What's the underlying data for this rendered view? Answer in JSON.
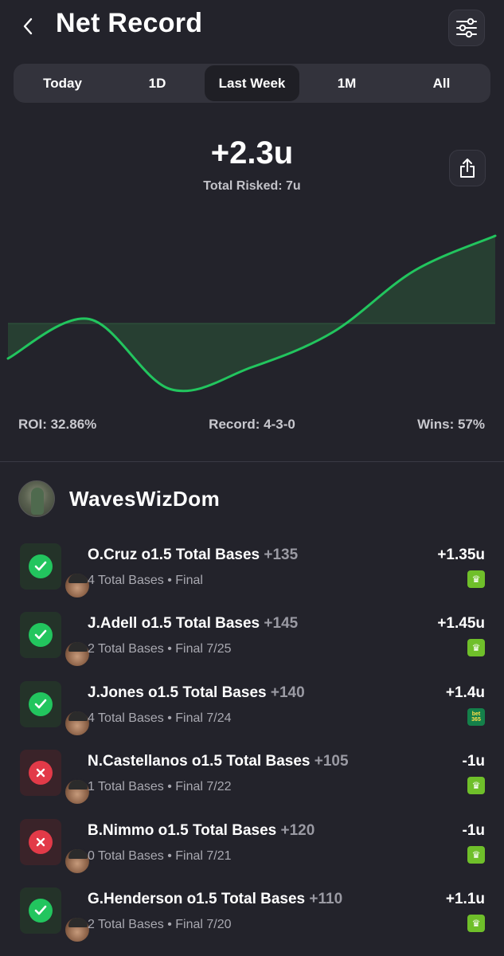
{
  "header": {
    "title": "Net Record",
    "back_icon": "chevron-left-icon",
    "filter_icon": "sliders-icon"
  },
  "tabs": [
    {
      "label": "Today",
      "active": false
    },
    {
      "label": "1D",
      "active": false
    },
    {
      "label": "Last Week",
      "active": true
    },
    {
      "label": "1M",
      "active": false
    },
    {
      "label": "All",
      "active": false
    }
  ],
  "summary": {
    "value": "+2.3u",
    "subtitle": "Total Risked: 7u",
    "share_icon": "share-icon"
  },
  "chart_data": {
    "type": "area",
    "title": "",
    "xlabel": "",
    "ylabel": "",
    "baseline": 0,
    "y": [
      -0.4,
      0.05,
      -0.75,
      -0.5,
      -0.1,
      0.6,
      1.0
    ],
    "line_color": "#22c55e",
    "fill_color": "#2a4a36",
    "grid": false
  },
  "stats": {
    "roi": "ROI: 32.86%",
    "record": "Record: 4-3-0",
    "wins": "Wins: 57%"
  },
  "user": {
    "name": "WavesWizDom"
  },
  "colors": {
    "win": "#22c55e",
    "loss": "#e23a48",
    "background": "#23232b"
  },
  "bets": [
    {
      "title": "O.Cruz o1.5 Total Bases",
      "odds": "+135",
      "sub": "4 Total Bases • Final",
      "result": "+1.35u",
      "status": "win",
      "book": "draftkings"
    },
    {
      "title": "J.Adell o1.5 Total Bases",
      "odds": "+145",
      "sub": "2 Total Bases • Final 7/25",
      "result": "+1.45u",
      "status": "win",
      "book": "draftkings"
    },
    {
      "title": "J.Jones o1.5 Total Bases",
      "odds": "+140",
      "sub": "4 Total Bases • Final 7/24",
      "result": "+1.4u",
      "status": "win",
      "book": "bet365"
    },
    {
      "title": "N.Castellanos o1.5 Total Bases",
      "odds": "+105",
      "sub": "1 Total Bases • Final 7/22",
      "result": "-1u",
      "status": "loss",
      "book": "draftkings"
    },
    {
      "title": "B.Nimmo o1.5 Total Bases",
      "odds": "+120",
      "sub": "0 Total Bases • Final 7/21",
      "result": "-1u",
      "status": "loss",
      "book": "draftkings"
    },
    {
      "title": "G.Henderson o1.5 Total Bases",
      "odds": "+110",
      "sub": "2 Total Bases • Final 7/20",
      "result": "+1.1u",
      "status": "win",
      "book": "draftkings"
    }
  ]
}
